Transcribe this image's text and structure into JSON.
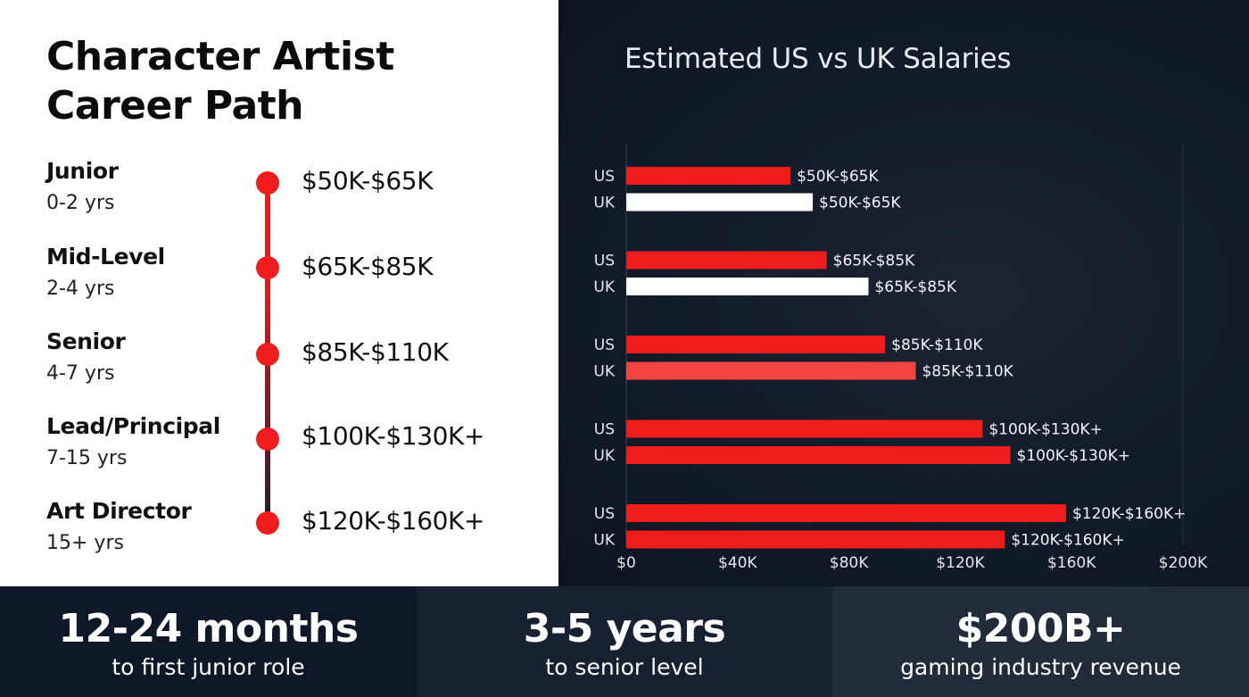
{
  "title": {
    "line1": "Character Artist",
    "line2": "Career Path"
  },
  "levels": [
    {
      "name": "Junior",
      "years": "0-2 yrs",
      "salary": "$50K-$65K"
    },
    {
      "name": "Mid-Level",
      "years": "2-4 yrs",
      "salary": "$65K-$85K"
    },
    {
      "name": "Senior",
      "years": "4-7 yrs",
      "salary": "$85K-$110K"
    },
    {
      "name": "Lead/Principal",
      "years": "7-15 yrs",
      "salary": "$100K-$130K+"
    },
    {
      "name": "Art Director",
      "years": "15+ yrs",
      "salary": "$120K-$160K+"
    }
  ],
  "chart_data": {
    "type": "bar",
    "orientation": "horizontal",
    "title": "Estimated US vs UK Salaries",
    "xlabel": "",
    "ylabel": "",
    "xlim": [
      0,
      200
    ],
    "x_ticks": [
      "$0",
      "$40K",
      "$80K",
      "$120K",
      "$160K",
      "$200K"
    ],
    "grid": false,
    "groups": [
      {
        "bars": [
          {
            "country": "US",
            "value": 59,
            "label": "$50K-$65K"
          },
          {
            "country": "UK",
            "value": 67,
            "label": "$50K-$65K"
          }
        ]
      },
      {
        "bars": [
          {
            "country": "US",
            "value": 72,
            "label": "$65K-$85K"
          },
          {
            "country": "UK",
            "value": 87,
            "label": "$65K-$85K"
          }
        ]
      },
      {
        "bars": [
          {
            "country": "US",
            "value": 93,
            "label": "$85K-$110K"
          },
          {
            "country": "UK",
            "value": 104,
            "label": "$85K-$110K"
          }
        ]
      },
      {
        "bars": [
          {
            "country": "US",
            "value": 128,
            "label": "$100K-$130K+"
          },
          {
            "country": "UK",
            "value": 138,
            "label": "$100K-$130K+"
          }
        ]
      },
      {
        "bars": [
          {
            "country": "US",
            "value": 158,
            "label": "$120K-$160K+"
          },
          {
            "country": "UK",
            "value": 136,
            "label": "$120K-$160K+"
          }
        ]
      }
    ],
    "colors": {
      "US": "#ee1c1c",
      "UK": "#ffffff",
      "UK_senior": "#f2453f",
      "UK_high": "#ee1c1c"
    }
  },
  "stats": [
    {
      "value": "12-24 months",
      "label": "to first junior role"
    },
    {
      "value": "3-5 years",
      "label": "to senior level"
    },
    {
      "value": "$200B+",
      "label": "gaming industry revenue"
    }
  ]
}
